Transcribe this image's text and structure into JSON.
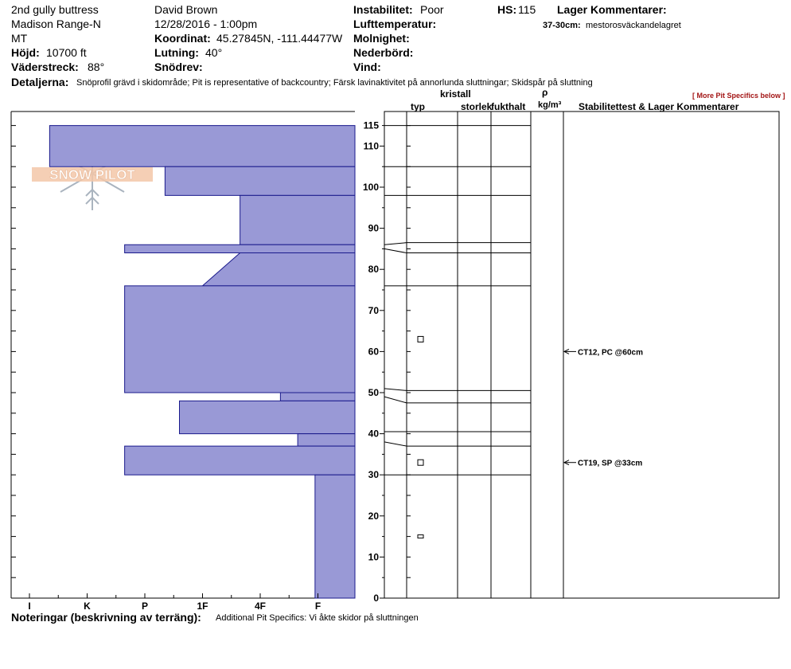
{
  "header": {
    "site": "2nd gully buttress",
    "range": "Madison Range-N",
    "state": "MT",
    "elevation_label": "Höjd:",
    "elevation_value": "10700 ft",
    "aspect_label": "Väderstreck:",
    "aspect_value": "88°",
    "observer": "David Brown",
    "datetime": "12/28/2016 - 1:00pm",
    "coord_label": "Koordinat:",
    "coord_value": "45.27845N, -111.44477W",
    "slope_label": "Lutning:",
    "slope_value": "40°",
    "drift_label": "Snödrev:",
    "instability_label": "Instabilitet:",
    "instability_value": "Poor",
    "airtemp_label": "Lufttemperatur:",
    "sky_label": "Molnighet:",
    "precip_label": "Nederbörd:",
    "wind_label": "Vind:",
    "hs_label": "HS:",
    "hs_value": "115",
    "layer_comments_label": "Lager Kommentarer:",
    "layer_comment_key": "37-30cm:",
    "layer_comment_value": "mestorosväckandelagret",
    "details_label": "Detaljerna:",
    "details_value": "Snöprofil grävd i skidområde; Pit is representative of backcountry; Färsk lavinaktivitet på annorlunda sluttningar; Skidspår på sluttning",
    "more_specifics": "[ More Pit Specifics below ]"
  },
  "columns": {
    "kristall": "kristall",
    "typ": "typ",
    "storlek": "storlek",
    "fukthalt": "fukthalt",
    "rho": "ρ",
    "density_unit": "kg/m³",
    "stability": "Stabilitettest & Lager Kommentarer"
  },
  "footer": {
    "notes_label": "Noteringar (beskrivning av terräng):",
    "notes_value": "Additional Pit Specifics: Vi åkte skidor på sluttningen"
  },
  "logo_text": "SNOW PILOT",
  "colors": {
    "fill": "#9999d6",
    "stroke": "#1a1a8c",
    "accent": "#a31515"
  },
  "chart_data": {
    "type": "bar",
    "hand_hardness_labels": [
      "I",
      "K",
      "P",
      "1F",
      "4F",
      "F"
    ],
    "depth_ticks_major": [
      0,
      10,
      20,
      30,
      40,
      50,
      60,
      70,
      80,
      90,
      100,
      110,
      115
    ],
    "ylim": [
      0,
      115
    ],
    "layers": [
      {
        "top": 115,
        "bottom": 105,
        "hardness_top": 0.35,
        "hardness_bottom": 0.35
      },
      {
        "top": 105,
        "bottom": 98,
        "hardness_top": 2.35,
        "hardness_bottom": 2.35
      },
      {
        "top": 98,
        "bottom": 86,
        "hardness_top": 3.65,
        "hardness_bottom": 3.65
      },
      {
        "top": 86,
        "bottom": 84,
        "hardness_top": 1.65,
        "hardness_bottom": 1.65
      },
      {
        "top": 84,
        "bottom": 76,
        "hardness_top": 3.65,
        "hardness_bottom": 3.0
      },
      {
        "top": 76,
        "bottom": 50,
        "hardness_top": 1.65,
        "hardness_bottom": 1.65
      },
      {
        "top": 50,
        "bottom": 48,
        "hardness_top": 4.35,
        "hardness_bottom": 4.35
      },
      {
        "top": 48,
        "bottom": 40,
        "hardness_top": 2.6,
        "hardness_bottom": 2.6
      },
      {
        "top": 40,
        "bottom": 37,
        "hardness_top": 4.65,
        "hardness_bottom": 4.65
      },
      {
        "top": 37,
        "bottom": 30,
        "hardness_top": 1.65,
        "hardness_bottom": 1.65
      },
      {
        "top": 30,
        "bottom": 0,
        "hardness_top": 4.95,
        "hardness_bottom": 4.95
      }
    ],
    "layer_boundaries": [
      115,
      105,
      98,
      86.5,
      84,
      76,
      50.5,
      47.5,
      40.5,
      37,
      30
    ],
    "left_boundaries": [
      115,
      105,
      98,
      86,
      85,
      76,
      51,
      49,
      40.5,
      38,
      30
    ],
    "crystal_markers": [
      {
        "depth": 63
      },
      {
        "depth": 33
      },
      {
        "depth": 15
      }
    ],
    "stability_tests": [
      {
        "depth": 60,
        "label": "CT12, PC @60cm"
      },
      {
        "depth": 33,
        "label": "CT19, SP @33cm"
      }
    ]
  }
}
